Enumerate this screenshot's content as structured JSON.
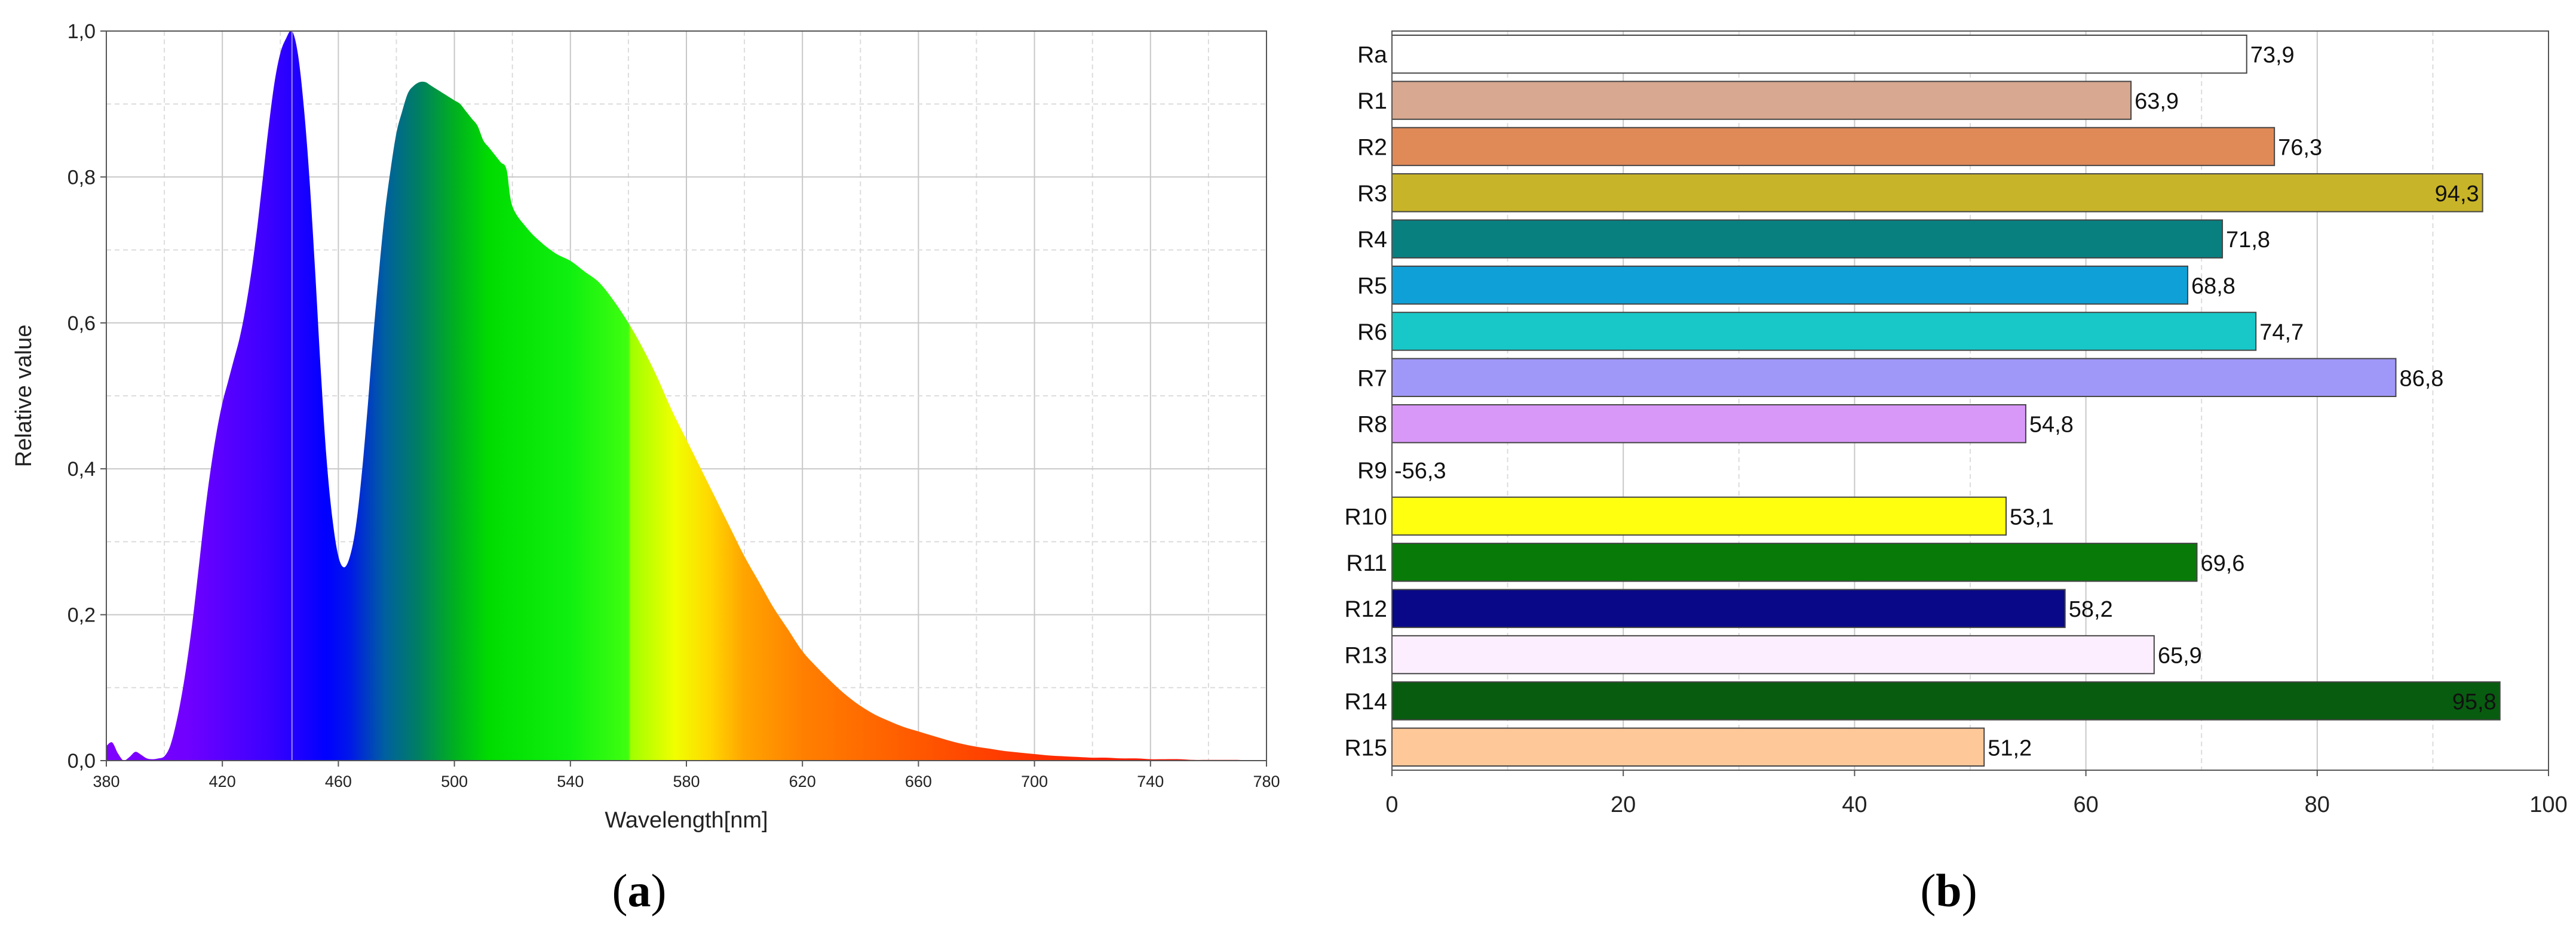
{
  "panel_captions": [
    {
      "open": "(",
      "letter": "a",
      "close": ")"
    },
    {
      "open": "(",
      "letter": "b",
      "close": ")"
    }
  ],
  "chart_data": [
    {
      "type": "area",
      "title": "",
      "xlabel": "Wavelength[nm]",
      "ylabel": "Relative value",
      "xlim": [
        380,
        780
      ],
      "ylim": [
        0,
        1
      ],
      "xticks": [
        380,
        420,
        460,
        500,
        540,
        580,
        620,
        660,
        700,
        740,
        780
      ],
      "xtick_labels": [
        "380",
        "420",
        "460",
        "500",
        "540",
        "580",
        "620",
        "660",
        "700",
        "740",
        "780"
      ],
      "yticks": [
        0,
        0.2,
        0.4,
        0.6,
        0.8,
        1.0
      ],
      "ytick_labels": [
        "0,0",
        "0,2",
        "0,4",
        "0,6",
        "0,8",
        "1,0"
      ],
      "grid": true,
      "fill": "visible-spectrum-colors",
      "x": [
        380,
        382,
        384,
        386,
        388,
        390,
        392,
        394,
        396,
        398,
        400,
        402,
        404,
        406,
        408,
        410,
        412,
        414,
        416,
        418,
        420,
        422,
        424,
        426,
        428,
        430,
        432,
        434,
        436,
        438,
        440,
        442,
        444,
        446,
        448,
        450,
        452,
        454,
        456,
        458,
        460,
        462,
        464,
        466,
        468,
        470,
        472,
        474,
        476,
        478,
        480,
        482,
        484,
        486,
        488,
        490,
        492,
        494,
        496,
        498,
        500,
        502,
        504,
        506,
        508,
        510,
        512,
        514,
        516,
        518,
        520,
        525,
        530,
        535,
        540,
        545,
        550,
        555,
        560,
        565,
        570,
        575,
        580,
        585,
        590,
        595,
        600,
        605,
        610,
        615,
        620,
        625,
        630,
        635,
        640,
        645,
        650,
        655,
        660,
        665,
        670,
        675,
        680,
        685,
        690,
        695,
        700,
        705,
        710,
        715,
        720,
        725,
        730,
        735,
        740,
        745,
        750,
        755,
        760,
        765,
        770,
        775,
        780
      ],
      "y": [
        0.02,
        0.025,
        0.01,
        0.0,
        0.005,
        0.012,
        0.008,
        0.003,
        0.002,
        0.003,
        0.006,
        0.02,
        0.05,
        0.09,
        0.14,
        0.2,
        0.27,
        0.34,
        0.4,
        0.45,
        0.49,
        0.52,
        0.55,
        0.58,
        0.62,
        0.67,
        0.73,
        0.8,
        0.87,
        0.93,
        0.97,
        0.99,
        1.0,
        0.97,
        0.9,
        0.8,
        0.67,
        0.53,
        0.41,
        0.33,
        0.28,
        0.265,
        0.28,
        0.32,
        0.39,
        0.48,
        0.58,
        0.67,
        0.75,
        0.81,
        0.86,
        0.89,
        0.915,
        0.925,
        0.93,
        0.93,
        0.925,
        0.92,
        0.915,
        0.91,
        0.905,
        0.9,
        0.89,
        0.88,
        0.87,
        0.85,
        0.84,
        0.83,
        0.82,
        0.81,
        0.76,
        0.73,
        0.71,
        0.695,
        0.685,
        0.67,
        0.655,
        0.63,
        0.6,
        0.565,
        0.525,
        0.48,
        0.44,
        0.4,
        0.36,
        0.32,
        0.28,
        0.245,
        0.21,
        0.18,
        0.15,
        0.128,
        0.108,
        0.09,
        0.075,
        0.063,
        0.054,
        0.046,
        0.04,
        0.034,
        0.028,
        0.023,
        0.019,
        0.016,
        0.013,
        0.011,
        0.009,
        0.007,
        0.006,
        0.005,
        0.004,
        0.004,
        0.003,
        0.003,
        0.002,
        0.002,
        0.002,
        0.001,
        0.001,
        0.001,
        0.001,
        0.0,
        0.0
      ]
    },
    {
      "type": "bar",
      "orientation": "horizontal",
      "title": "",
      "xlabel": "",
      "ylabel": "",
      "xlim": [
        0,
        100
      ],
      "xticks": [
        0,
        20,
        40,
        60,
        80,
        100
      ],
      "xtick_labels": [
        "0",
        "20",
        "40",
        "60",
        "80",
        "100"
      ],
      "grid": true,
      "categories": [
        "Ra",
        "R1",
        "R2",
        "R3",
        "R4",
        "R5",
        "R6",
        "R7",
        "R8",
        "R9",
        "R10",
        "R11",
        "R12",
        "R13",
        "R14",
        "R15"
      ],
      "values": [
        73.9,
        63.9,
        76.3,
        94.3,
        71.8,
        68.8,
        74.7,
        86.8,
        54.8,
        -56.3,
        53.1,
        69.6,
        58.2,
        65.9,
        95.8,
        51.2
      ],
      "value_labels": [
        "73,9",
        "63,9",
        "76,3",
        "94,3",
        "71,8",
        "68,8",
        "74,7",
        "86,8",
        "54,8",
        "-56,3",
        "53,1",
        "69,6",
        "58,2",
        "65,9",
        "95,8",
        "51,2"
      ],
      "colors": [
        "#ffffff",
        "#d8a890",
        "#e08a58",
        "#c8b428",
        "#088080",
        "#10a0d8",
        "#18c8c8",
        "#a098f8",
        "#d898f8",
        "#ff0000",
        "#ffff10",
        "#087a08",
        "#080888",
        "#fceefe",
        "#085c10",
        "#ffc898"
      ]
    }
  ]
}
